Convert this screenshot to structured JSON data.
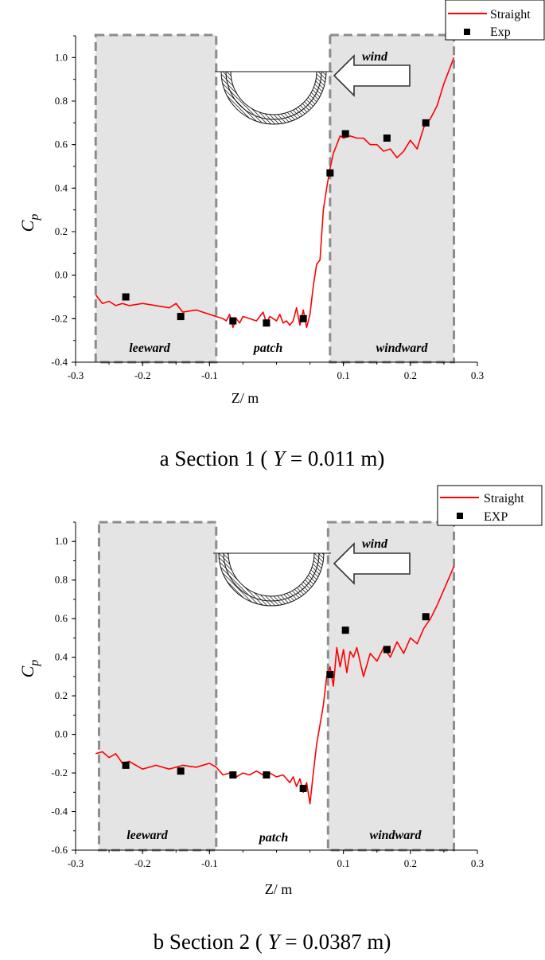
{
  "charts": [
    {
      "caption": {
        "prefix": "a Section 1 ( ",
        "var": "Y",
        "rest": " = 0.011 m)"
      },
      "legend": {
        "line": "Straight",
        "marker": "Exp"
      },
      "annotations": {
        "wind": "wind",
        "leeward": "leeward",
        "patch": "patch",
        "windward": "windward"
      },
      "xlabel": "Z/ m",
      "ylabel": {
        "main": "C",
        "sub": "p"
      }
    },
    {
      "caption": {
        "prefix": "b Section 2 ( ",
        "var": "Y",
        "rest": " = 0.0387 m)"
      },
      "legend": {
        "line": "Straight",
        "marker": "EXP"
      },
      "annotations": {
        "wind": "wind",
        "leeward": "leeward",
        "patch": "patch",
        "windward": "windward"
      },
      "xlabel": "Z/ m",
      "ylabel": {
        "main": "C",
        "sub": "p"
      }
    }
  ],
  "chart_data": [
    {
      "type": "line",
      "xlim": [
        -0.3,
        0.3
      ],
      "ylim": [
        -0.4,
        1.1
      ],
      "xticks": [
        "-0.3",
        "-0.2",
        "-0.1",
        "0.1",
        "0.2",
        "0.3"
      ],
      "xtick_values": [
        -0.3,
        -0.2,
        -0.1,
        0.1,
        0.2,
        0.3
      ],
      "yticks": [
        "-0.4",
        "-0.2",
        "0.0",
        "0.2",
        "0.4",
        "0.6",
        "0.8",
        "1.0"
      ],
      "ytick_values": [
        -0.4,
        -0.2,
        0.0,
        0.2,
        0.4,
        0.6,
        0.8,
        1.0
      ],
      "regions": [
        {
          "name": "leeward",
          "x": [
            -0.27,
            -0.09
          ]
        },
        {
          "name": "windward",
          "x": [
            0.08,
            0.265
          ]
        }
      ],
      "series": [
        {
          "name": "Straight",
          "kind": "line",
          "color": "#ff0000",
          "x": [
            -0.27,
            -0.26,
            -0.25,
            -0.24,
            -0.23,
            -0.22,
            -0.2,
            -0.18,
            -0.16,
            -0.15,
            -0.14,
            -0.12,
            -0.1,
            -0.09,
            -0.08,
            -0.075,
            -0.07,
            -0.065,
            -0.06,
            -0.055,
            -0.05,
            -0.04,
            -0.03,
            -0.02,
            -0.015,
            -0.01,
            0.0,
            0.005,
            0.01,
            0.015,
            0.02,
            0.025,
            0.03,
            0.035,
            0.04,
            0.045,
            0.05,
            0.055,
            0.06,
            0.065,
            0.07,
            0.075,
            0.08,
            0.085,
            0.09,
            0.095,
            0.1,
            0.11,
            0.12,
            0.13,
            0.14,
            0.15,
            0.16,
            0.17,
            0.18,
            0.19,
            0.2,
            0.21,
            0.22,
            0.23,
            0.24,
            0.25,
            0.26,
            0.265
          ],
          "y": [
            -0.09,
            -0.13,
            -0.12,
            -0.14,
            -0.13,
            -0.14,
            -0.13,
            -0.14,
            -0.15,
            -0.13,
            -0.17,
            -0.16,
            -0.18,
            -0.19,
            -0.2,
            -0.21,
            -0.18,
            -0.24,
            -0.2,
            -0.22,
            -0.19,
            -0.2,
            -0.21,
            -0.17,
            -0.22,
            -0.19,
            -0.21,
            -0.18,
            -0.22,
            -0.21,
            -0.23,
            -0.21,
            -0.15,
            -0.23,
            -0.16,
            -0.24,
            -0.18,
            -0.05,
            0.05,
            0.07,
            0.3,
            0.4,
            0.49,
            0.56,
            0.6,
            0.64,
            0.63,
            0.64,
            0.63,
            0.63,
            0.6,
            0.6,
            0.57,
            0.58,
            0.54,
            0.57,
            0.62,
            0.58,
            0.68,
            0.72,
            0.78,
            0.88,
            0.96,
            1.0
          ]
        },
        {
          "name": "Exp",
          "kind": "marker",
          "color": "#000000",
          "x": [
            -0.225,
            -0.143,
            -0.065,
            -0.015,
            0.04,
            0.08,
            0.103,
            0.165,
            0.223
          ],
          "y": [
            -0.1,
            -0.19,
            -0.21,
            -0.22,
            -0.2,
            0.47,
            0.65,
            0.63,
            0.7
          ]
        }
      ]
    },
    {
      "type": "line",
      "xlim": [
        -0.3,
        0.3
      ],
      "ylim": [
        -0.6,
        1.1
      ],
      "xticks": [
        "-0.3",
        "-0.2",
        "-0.1",
        "0.1",
        "0.2",
        "0.3"
      ],
      "xtick_values": [
        -0.3,
        -0.2,
        -0.1,
        0.1,
        0.2,
        0.3
      ],
      "yticks": [
        "-0.6",
        "-0.4",
        "-0.2",
        "0.0",
        "0.2",
        "0.4",
        "0.6",
        "0.8",
        "1.0"
      ],
      "ytick_values": [
        -0.6,
        -0.4,
        -0.2,
        0.0,
        0.2,
        0.4,
        0.6,
        0.8,
        1.0
      ],
      "regions": [
        {
          "name": "leeward",
          "x": [
            -0.265,
            -0.09
          ]
        },
        {
          "name": "windward",
          "x": [
            0.077,
            0.265
          ]
        }
      ],
      "series": [
        {
          "name": "Straight",
          "kind": "line",
          "color": "#ff0000",
          "x": [
            -0.27,
            -0.26,
            -0.25,
            -0.24,
            -0.23,
            -0.22,
            -0.2,
            -0.18,
            -0.16,
            -0.14,
            -0.12,
            -0.1,
            -0.09,
            -0.08,
            -0.07,
            -0.06,
            -0.05,
            -0.04,
            -0.03,
            -0.02,
            -0.01,
            0.0,
            0.01,
            0.02,
            0.025,
            0.03,
            0.035,
            0.04,
            0.045,
            0.05,
            0.055,
            0.06,
            0.065,
            0.07,
            0.075,
            0.08,
            0.085,
            0.09,
            0.095,
            0.1,
            0.105,
            0.11,
            0.115,
            0.12,
            0.13,
            0.14,
            0.15,
            0.16,
            0.17,
            0.18,
            0.19,
            0.2,
            0.21,
            0.22,
            0.23,
            0.24,
            0.25,
            0.26,
            0.265
          ],
          "y": [
            -0.1,
            -0.09,
            -0.12,
            -0.1,
            -0.15,
            -0.14,
            -0.18,
            -0.16,
            -0.18,
            -0.16,
            -0.17,
            -0.15,
            -0.17,
            -0.21,
            -0.2,
            -0.22,
            -0.2,
            -0.21,
            -0.19,
            -0.21,
            -0.2,
            -0.22,
            -0.21,
            -0.25,
            -0.22,
            -0.27,
            -0.23,
            -0.3,
            -0.25,
            -0.36,
            -0.2,
            -0.05,
            0.05,
            0.15,
            0.3,
            0.35,
            0.25,
            0.45,
            0.35,
            0.44,
            0.32,
            0.43,
            0.4,
            0.45,
            0.3,
            0.42,
            0.38,
            0.45,
            0.4,
            0.48,
            0.42,
            0.5,
            0.47,
            0.55,
            0.6,
            0.67,
            0.75,
            0.83,
            0.87
          ]
        },
        {
          "name": "EXP",
          "kind": "marker",
          "color": "#000000",
          "x": [
            -0.225,
            -0.143,
            -0.065,
            -0.015,
            0.04,
            0.08,
            0.103,
            0.165,
            0.223
          ],
          "y": [
            -0.16,
            -0.19,
            -0.21,
            -0.21,
            -0.28,
            0.31,
            0.54,
            0.44,
            0.61
          ]
        }
      ]
    }
  ]
}
